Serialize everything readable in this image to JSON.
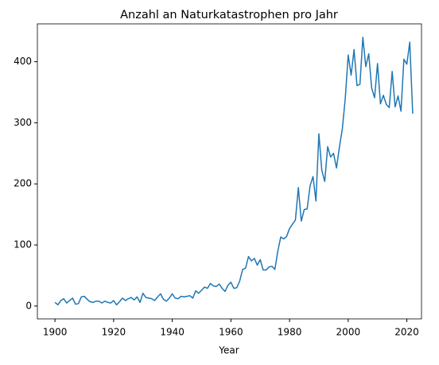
{
  "chart_data": {
    "type": "line",
    "title": "Anzahl an Naturkatastrophen pro Jahr",
    "xlabel": "Year",
    "x": [
      1900,
      1901,
      1902,
      1903,
      1904,
      1905,
      1906,
      1907,
      1908,
      1909,
      1910,
      1911,
      1912,
      1913,
      1914,
      1915,
      1916,
      1917,
      1918,
      1919,
      1920,
      1921,
      1922,
      1923,
      1924,
      1925,
      1926,
      1927,
      1928,
      1929,
      1930,
      1931,
      1932,
      1933,
      1934,
      1935,
      1936,
      1937,
      1938,
      1939,
      1940,
      1941,
      1942,
      1943,
      1944,
      1945,
      1946,
      1947,
      1948,
      1949,
      1950,
      1951,
      1952,
      1953,
      1954,
      1955,
      1956,
      1957,
      1958,
      1959,
      1960,
      1961,
      1962,
      1963,
      1964,
      1965,
      1966,
      1967,
      1968,
      1969,
      1970,
      1971,
      1972,
      1973,
      1974,
      1975,
      1976,
      1977,
      1978,
      1979,
      1980,
      1981,
      1982,
      1983,
      1984,
      1985,
      1986,
      1987,
      1988,
      1989,
      1990,
      1991,
      1992,
      1993,
      1994,
      1995,
      1996,
      1997,
      1998,
      1999,
      2000,
      2001,
      2002,
      2003,
      2004,
      2005,
      2006,
      2007,
      2008,
      2009,
      2010,
      2011,
      2012,
      2013,
      2014,
      2015,
      2016,
      2017,
      2018,
      2019,
      2020,
      2021,
      2022
    ],
    "series": [
      {
        "color": "#1f77b4",
        "values": [
          6,
          2,
          9,
          12,
          5,
          9,
          13,
          3,
          4,
          15,
          16,
          11,
          7,
          6,
          8,
          8,
          5,
          8,
          6,
          5,
          9,
          2,
          7,
          13,
          9,
          12,
          14,
          10,
          15,
          6,
          21,
          14,
          13,
          12,
          9,
          15,
          20,
          11,
          8,
          13,
          20,
          13,
          12,
          16,
          15,
          16,
          17,
          13,
          25,
          21,
          26,
          31,
          29,
          37,
          33,
          32,
          36,
          29,
          24,
          34,
          39,
          29,
          30,
          41,
          60,
          62,
          81,
          74,
          78,
          67,
          76,
          59,
          59,
          64,
          65,
          60,
          90,
          113,
          110,
          114,
          127,
          134,
          141,
          194,
          139,
          158,
          159,
          197,
          212,
          172,
          282,
          222,
          204,
          261,
          244,
          250,
          226,
          260,
          290,
          340,
          411,
          378,
          420,
          361,
          363,
          440,
          392,
          413,
          357,
          341,
          397,
          331,
          345,
          330,
          325,
          384,
          326,
          344,
          319,
          404,
          396,
          432,
          315
        ]
      }
    ],
    "xlim": [
      1894,
      2025
    ],
    "ylim": [
      -21,
      462
    ],
    "xticks": [
      1900,
      1920,
      1940,
      1960,
      1980,
      2000,
      2020
    ],
    "yticks": [
      0,
      100,
      200,
      300,
      400
    ]
  }
}
